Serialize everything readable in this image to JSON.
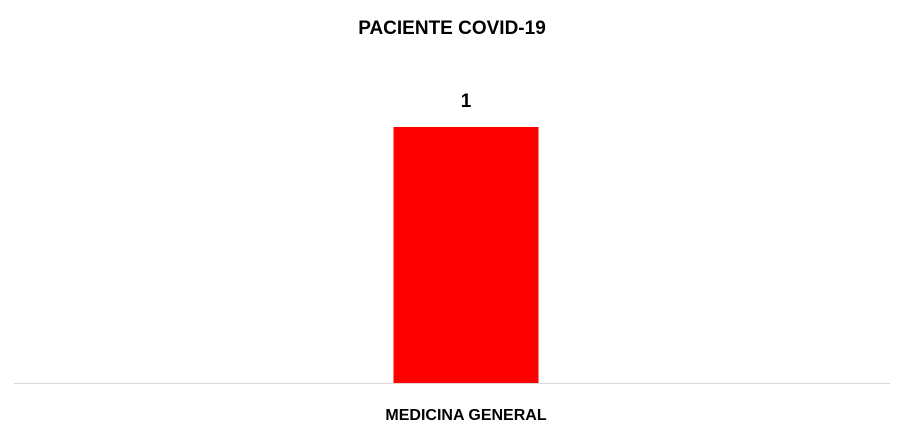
{
  "chart_data": {
    "type": "bar",
    "title": "PACIENTE COVID-19",
    "categories": [
      "MEDICINA GENERAL"
    ],
    "values": [
      1
    ],
    "color": "#ff0000",
    "ylim": [
      0,
      1.2
    ],
    "data_labels": true
  }
}
